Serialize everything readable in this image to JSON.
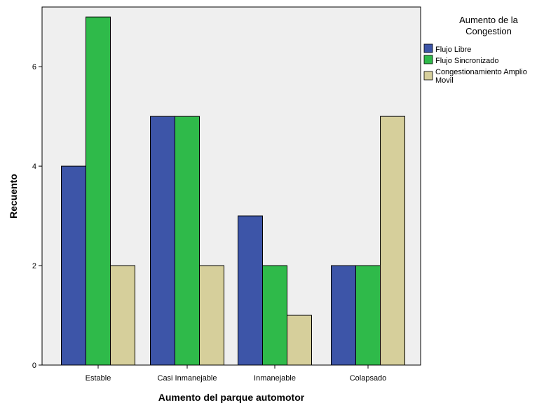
{
  "chart_data": {
    "type": "bar",
    "categories": [
      "Estable",
      "Casi Inmanejable",
      "Inmanejable",
      "Colapsado"
    ],
    "series": [
      {
        "name": "Flujo Libre",
        "values": [
          4,
          5,
          3,
          2
        ],
        "color": "#3d55a8"
      },
      {
        "name": "Flujo Sincronizado",
        "values": [
          7,
          5,
          2,
          2
        ],
        "color": "#2fba4a"
      },
      {
        "name": "Congestionamiento Amplio Movil",
        "values": [
          2,
          2,
          1,
          5
        ],
        "color": "#d6cf9b"
      }
    ],
    "xlabel": "Aumento del parque automotor",
    "ylabel": "Recuento",
    "ylim": [
      0,
      7.2
    ],
    "yticks": [
      0,
      2,
      4,
      6
    ],
    "grid": false,
    "legend": {
      "title": [
        "Aumento de la",
        "Congestion"
      ],
      "labels": [
        "Flujo Libre",
        "Flujo Sincronizado",
        "Congestionamiento Amplio",
        "Movil"
      ],
      "placement": "right"
    },
    "plot_background": "#efefef"
  }
}
